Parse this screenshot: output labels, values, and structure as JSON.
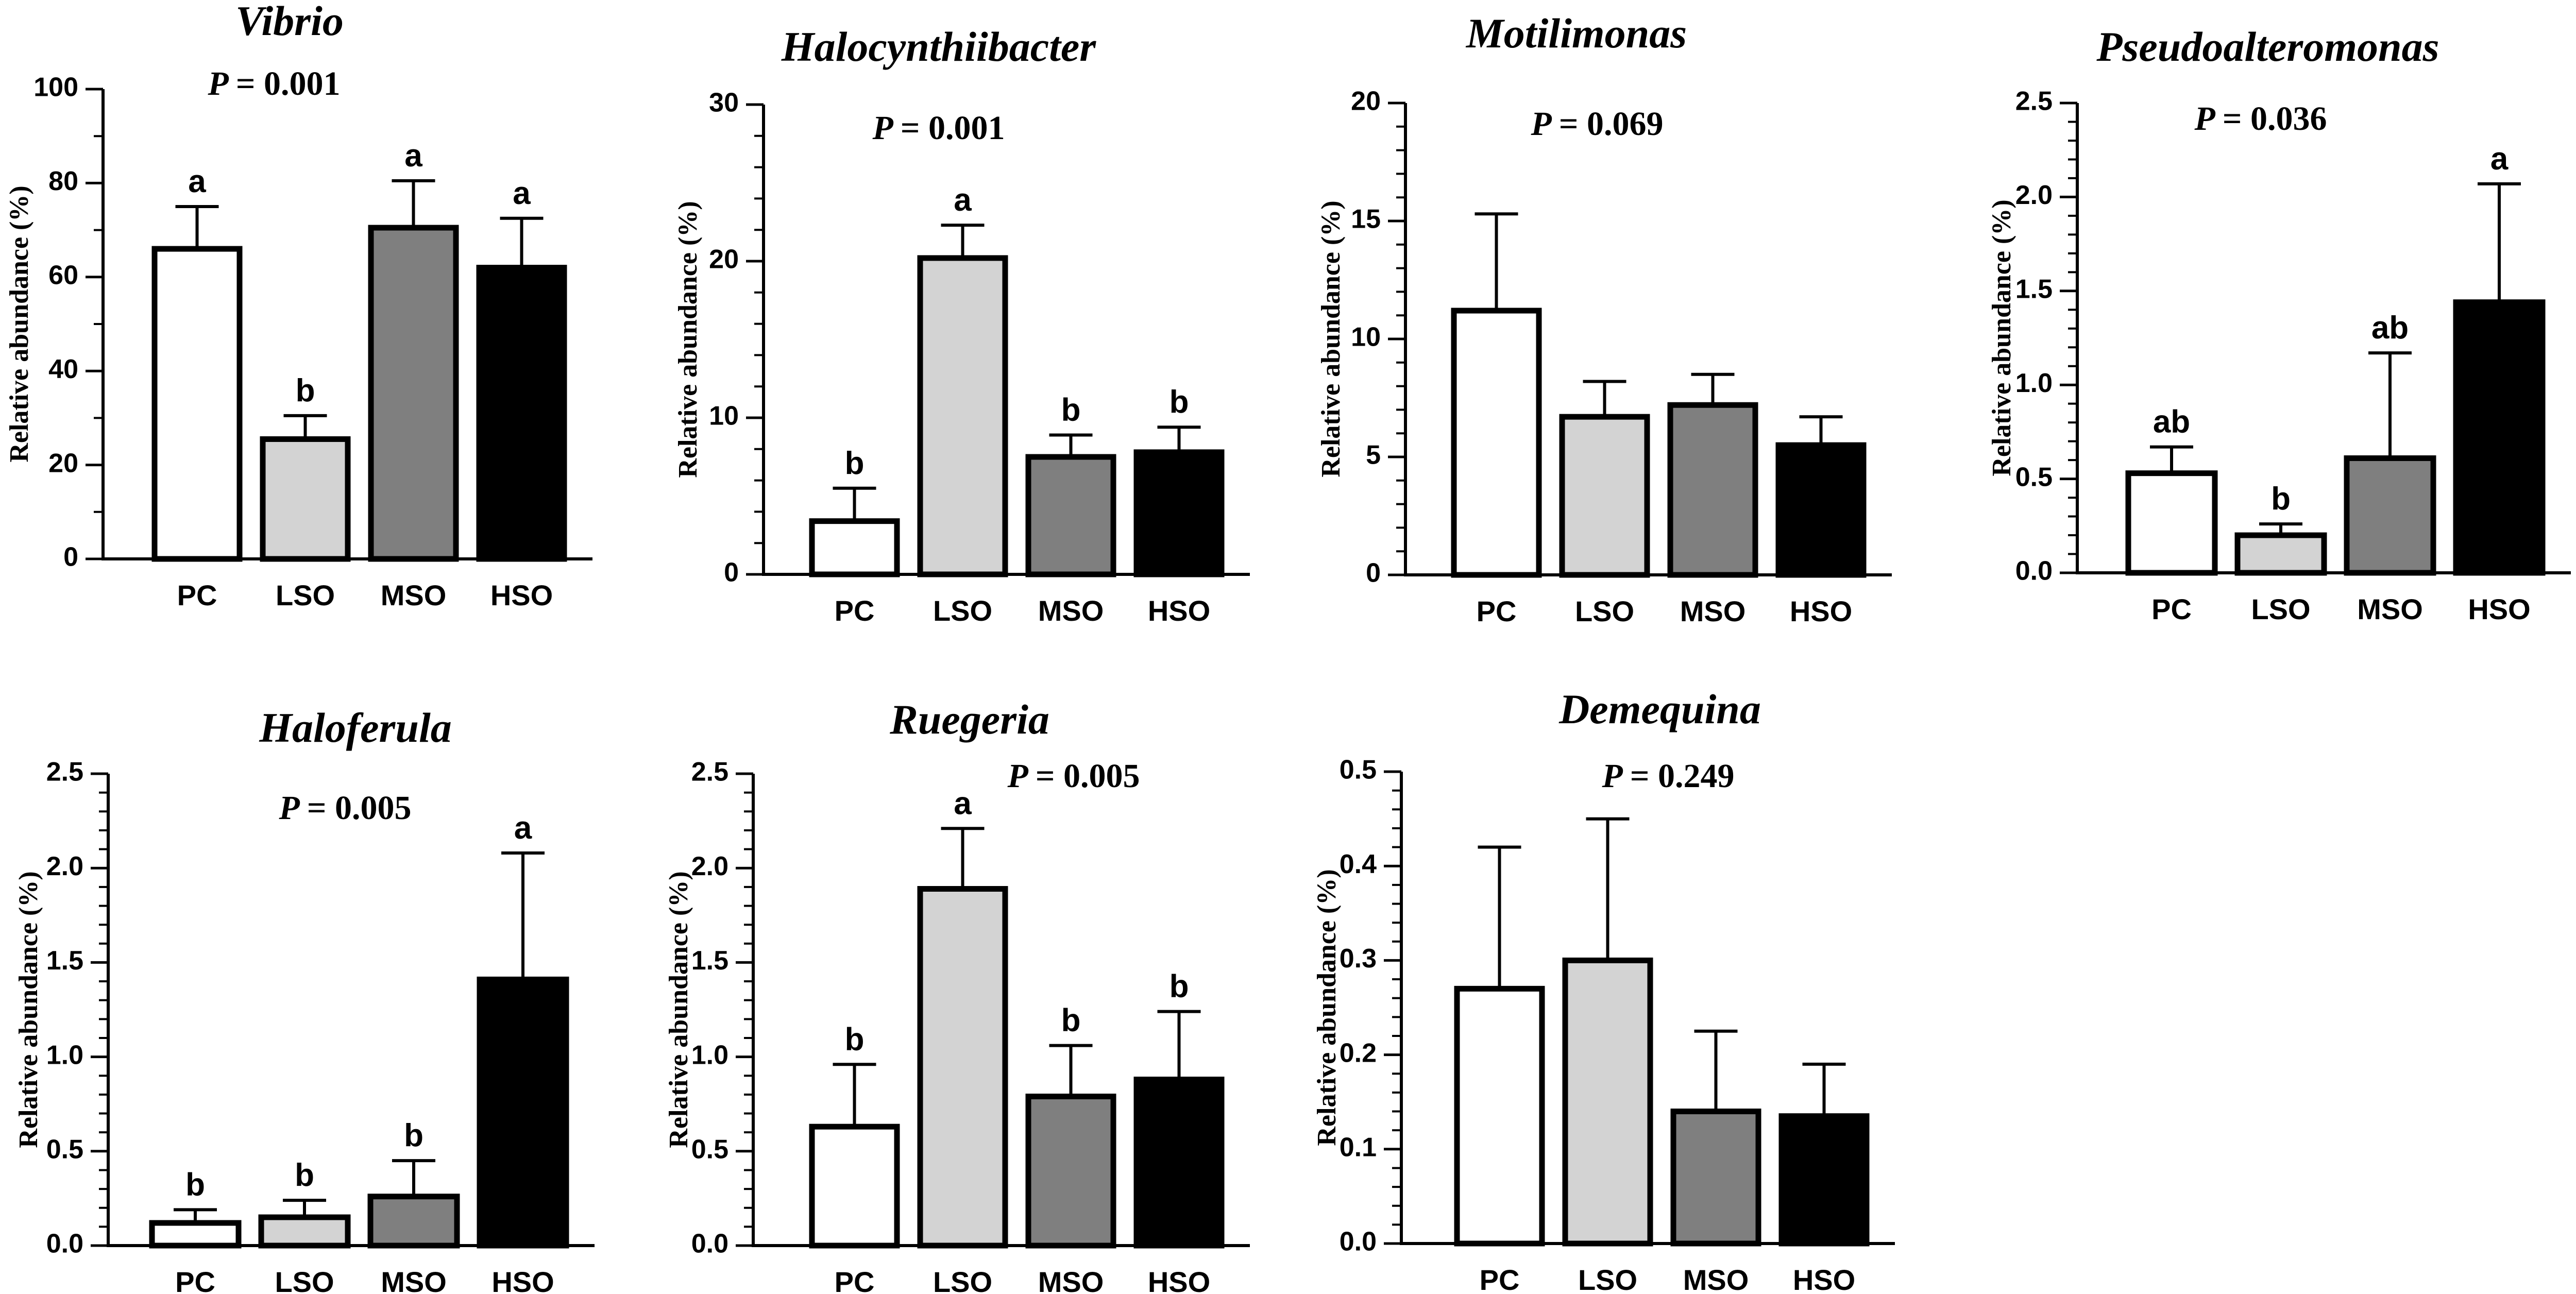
{
  "colors": {
    "PC": "#ffffff",
    "LSO": "#d3d3d3",
    "MSO": "#7f7f7f",
    "HSO": "#000000",
    "stroke": "#000000"
  },
  "chart_data": [
    {
      "type": "bar",
      "title": "Vibrio",
      "p_label": "P",
      "p_value": "= 0.001",
      "ylabel": "Relative abundance (%)",
      "categories": [
        "PC",
        "LSO",
        "MSO",
        "HSO"
      ],
      "values": [
        66,
        25.5,
        70.5,
        62
      ],
      "errors": [
        9,
        5,
        10,
        10.5
      ],
      "significance": [
        "a",
        "b",
        "a",
        "a"
      ],
      "ylim": [
        0,
        100
      ],
      "yticks": [
        "0",
        "20",
        "40",
        "60",
        "80",
        "100"
      ],
      "ytick_values": [
        0,
        20,
        40,
        60,
        80,
        100
      ],
      "minor_step": 10
    },
    {
      "type": "bar",
      "title": "Halocynthiibacter",
      "p_label": "P",
      "p_value": "= 0.001",
      "ylabel": "Relative abundance (%)",
      "categories": [
        "PC",
        "LSO",
        "MSO",
        "HSO"
      ],
      "values": [
        3.4,
        20.2,
        7.5,
        7.8
      ],
      "errors": [
        2.1,
        2.1,
        1.4,
        1.6
      ],
      "significance": [
        "b",
        "a",
        "b",
        "b"
      ],
      "ylim": [
        0,
        30
      ],
      "yticks": [
        "0",
        "10",
        "20",
        "30"
      ],
      "ytick_values": [
        0,
        10,
        20,
        30
      ],
      "minor_step": 2
    },
    {
      "type": "bar",
      "title": "Motilimonas",
      "p_label": "P",
      "p_value": "= 0.069",
      "ylabel": "Relative abundance (%)",
      "categories": [
        "PC",
        "LSO",
        "MSO",
        "HSO"
      ],
      "values": [
        11.2,
        6.7,
        7.2,
        5.5
      ],
      "errors": [
        4.1,
        1.5,
        1.3,
        1.2
      ],
      "significance": [
        "",
        "",
        "",
        ""
      ],
      "ylim": [
        0,
        20
      ],
      "yticks": [
        "0",
        "5",
        "10",
        "15",
        "20"
      ],
      "ytick_values": [
        0,
        5,
        10,
        15,
        20
      ],
      "minor_step": 1
    },
    {
      "type": "bar",
      "title": "Pseudoalteromonas",
      "p_label": "P",
      "p_value": "= 0.036",
      "ylabel": "Relative abundance (%)",
      "categories": [
        "PC",
        "LSO",
        "MSO",
        "HSO"
      ],
      "values": [
        0.53,
        0.2,
        0.61,
        1.44
      ],
      "errors": [
        0.14,
        0.06,
        0.56,
        0.63
      ],
      "significance": [
        "ab",
        "b",
        "ab",
        "a"
      ],
      "ylim": [
        0,
        2.5
      ],
      "yticks": [
        "0.0",
        "0.5",
        "1.0",
        "1.5",
        "2.0",
        "2.5"
      ],
      "ytick_values": [
        0,
        0.5,
        1.0,
        1.5,
        2.0,
        2.5
      ],
      "minor_step": 0.1
    },
    {
      "type": "bar",
      "title": "Haloferula",
      "p_label": "P",
      "p_value": "= 0.005",
      "ylabel": "Relative abundance (%)",
      "categories": [
        "PC",
        "LSO",
        "MSO",
        "HSO"
      ],
      "values": [
        0.12,
        0.15,
        0.26,
        1.41
      ],
      "errors": [
        0.07,
        0.09,
        0.19,
        0.67
      ],
      "significance": [
        "b",
        "b",
        "b",
        "a"
      ],
      "ylim": [
        0,
        2.5
      ],
      "yticks": [
        "0.0",
        "0.5",
        "1.0",
        "1.5",
        "2.0",
        "2.5"
      ],
      "ytick_values": [
        0,
        0.5,
        1.0,
        1.5,
        2.0,
        2.5
      ],
      "minor_step": 0.1
    },
    {
      "type": "bar",
      "title": "Ruegeria",
      "p_label": "P",
      "p_value": "= 0.005",
      "ylabel": "Relative abundance (%)",
      "categories": [
        "PC",
        "LSO",
        "MSO",
        "HSO"
      ],
      "values": [
        0.63,
        1.89,
        0.79,
        0.88
      ],
      "errors": [
        0.33,
        0.32,
        0.27,
        0.36
      ],
      "significance": [
        "b",
        "a",
        "b",
        "b"
      ],
      "ylim": [
        0,
        2.5
      ],
      "yticks": [
        "0.0",
        "0.5",
        "1.0",
        "1.5",
        "2.0",
        "2.5"
      ],
      "ytick_values": [
        0,
        0.5,
        1.0,
        1.5,
        2.0,
        2.5
      ],
      "minor_step": 0.1
    },
    {
      "type": "bar",
      "title": "Demequina",
      "p_label": "P",
      "p_value": "= 0.249",
      "ylabel": "Relative abundance (%)",
      "categories": [
        "PC",
        "LSO",
        "MSO",
        "HSO"
      ],
      "values": [
        0.27,
        0.3,
        0.14,
        0.135
      ],
      "errors": [
        0.15,
        0.15,
        0.085,
        0.055
      ],
      "significance": [
        "",
        "",
        "",
        ""
      ],
      "ylim": [
        0,
        0.5
      ],
      "yticks": [
        "0.0",
        "0.1",
        "0.2",
        "0.3",
        "0.4",
        "0.5"
      ],
      "ytick_values": [
        0,
        0.1,
        0.2,
        0.3,
        0.4,
        0.5
      ],
      "minor_step": 0.02
    }
  ]
}
